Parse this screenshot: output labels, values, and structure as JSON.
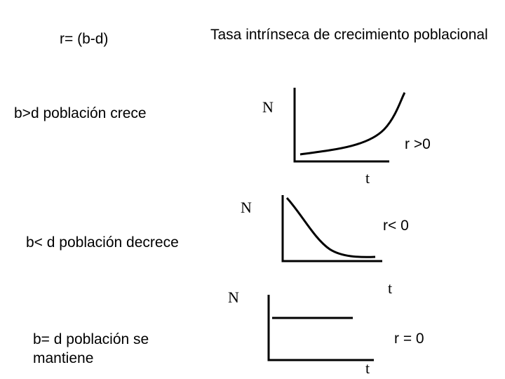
{
  "header": {
    "formula": "r= (b-d)",
    "title": "Tasa intrínseca de crecimiento poblacional"
  },
  "cases": [
    {
      "condition": "b>d  población crece",
      "y_label": "N",
      "x_label": "t",
      "r_label": "r >0",
      "curve": "exponential-growth"
    },
    {
      "condition": "b< d población decrece",
      "y_label": "N",
      "x_label": "t",
      "r_label": "r< 0",
      "curve": "exponential-decay"
    },
    {
      "condition": "b= d  población se\nmantiene",
      "y_label": "N",
      "x_label": "t",
      "r_label": "r = 0",
      "curve": "constant"
    }
  ],
  "colors": {
    "background": "#ffffff",
    "ink": "#000000"
  }
}
